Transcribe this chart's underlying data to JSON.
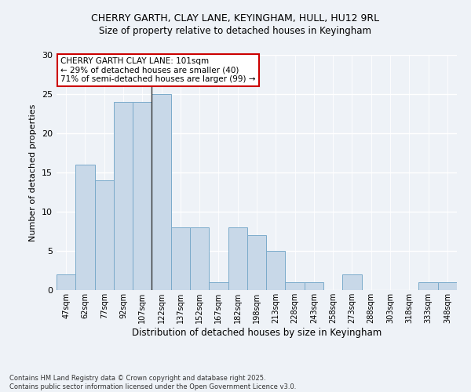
{
  "title_line1": "CHERRY GARTH, CLAY LANE, KEYINGHAM, HULL, HU12 9RL",
  "title_line2": "Size of property relative to detached houses in Keyingham",
  "xlabel": "Distribution of detached houses by size in Keyingham",
  "ylabel": "Number of detached properties",
  "categories": [
    "47sqm",
    "62sqm",
    "77sqm",
    "92sqm",
    "107sqm",
    "122sqm",
    "137sqm",
    "152sqm",
    "167sqm",
    "182sqm",
    "198sqm",
    "213sqm",
    "228sqm",
    "243sqm",
    "258sqm",
    "273sqm",
    "288sqm",
    "303sqm",
    "318sqm",
    "333sqm",
    "348sqm"
  ],
  "values": [
    2,
    16,
    14,
    24,
    24,
    25,
    8,
    8,
    1,
    8,
    7,
    5,
    1,
    1,
    0,
    2,
    0,
    0,
    0,
    1,
    1
  ],
  "bar_color": "#c8d8e8",
  "bar_edge_color": "#7aaaca",
  "ylim": [
    0,
    30
  ],
  "yticks": [
    0,
    5,
    10,
    15,
    20,
    25,
    30
  ],
  "annotation_box_text": "CHERRY GARTH CLAY LANE: 101sqm\n← 29% of detached houses are smaller (40)\n71% of semi-detached houses are larger (99) →",
  "annotation_box_color": "#cc0000",
  "vline_x_index": 4.5,
  "footer": "Contains HM Land Registry data © Crown copyright and database right 2025.\nContains public sector information licensed under the Open Government Licence v3.0.",
  "background_color": "#eef2f7",
  "grid_color": "#ffffff",
  "title1_fontsize": 9,
  "title2_fontsize": 8.5,
  "ylabel_fontsize": 8,
  "xlabel_fontsize": 8.5,
  "tick_fontsize": 7,
  "ytick_fontsize": 8,
  "footer_fontsize": 6,
  "annot_fontsize": 7.5
}
